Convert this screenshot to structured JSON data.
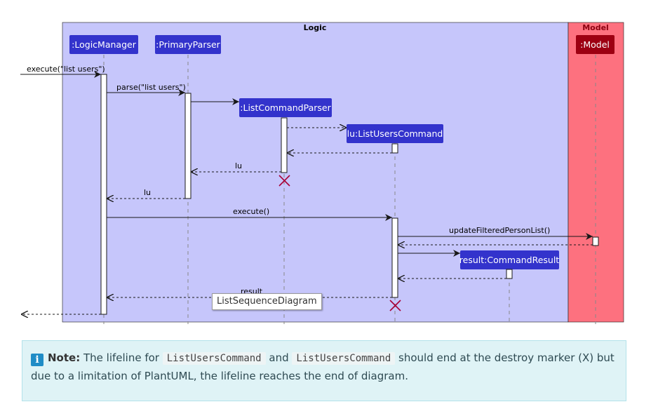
{
  "diagram": {
    "boxes": {
      "logic": "Logic",
      "model": "Model"
    },
    "participants": {
      "logic_manager": ":LogicManager",
      "primary_parser": ":PrimaryParser",
      "list_command_parser": ":ListCommandParser",
      "list_users_command": "lu:ListUsersCommand",
      "command_result": "result:CommandResult",
      "model": ":Model"
    },
    "messages": {
      "execute_list_users": "execute(\"list users\")",
      "parse_list_users": "parse(\"list users\")",
      "return_lu_parser": "lu",
      "return_lu_primary": "lu",
      "execute": "execute()",
      "update_filtered": "updateFilteredPersonList()",
      "return_result": "result"
    },
    "tooltip": "ListSequenceDiagram",
    "colors": {
      "logic_box": "#c6c6fb",
      "model_box": "#fd717f",
      "participant": "#3333cc",
      "model_participant": "#9d0012",
      "destroy": "#a80036"
    }
  },
  "note": {
    "icon": "info-icon",
    "lead": "Note:",
    "text_1": "The lifeline for",
    "code_1": "ListUsersCommand",
    "text_2": "and",
    "code_2": "ListUsersCommand",
    "text_3": "should end at the destroy marker (X) but due to a limitation of PlantUML, the lifeline reaches the end of diagram."
  }
}
